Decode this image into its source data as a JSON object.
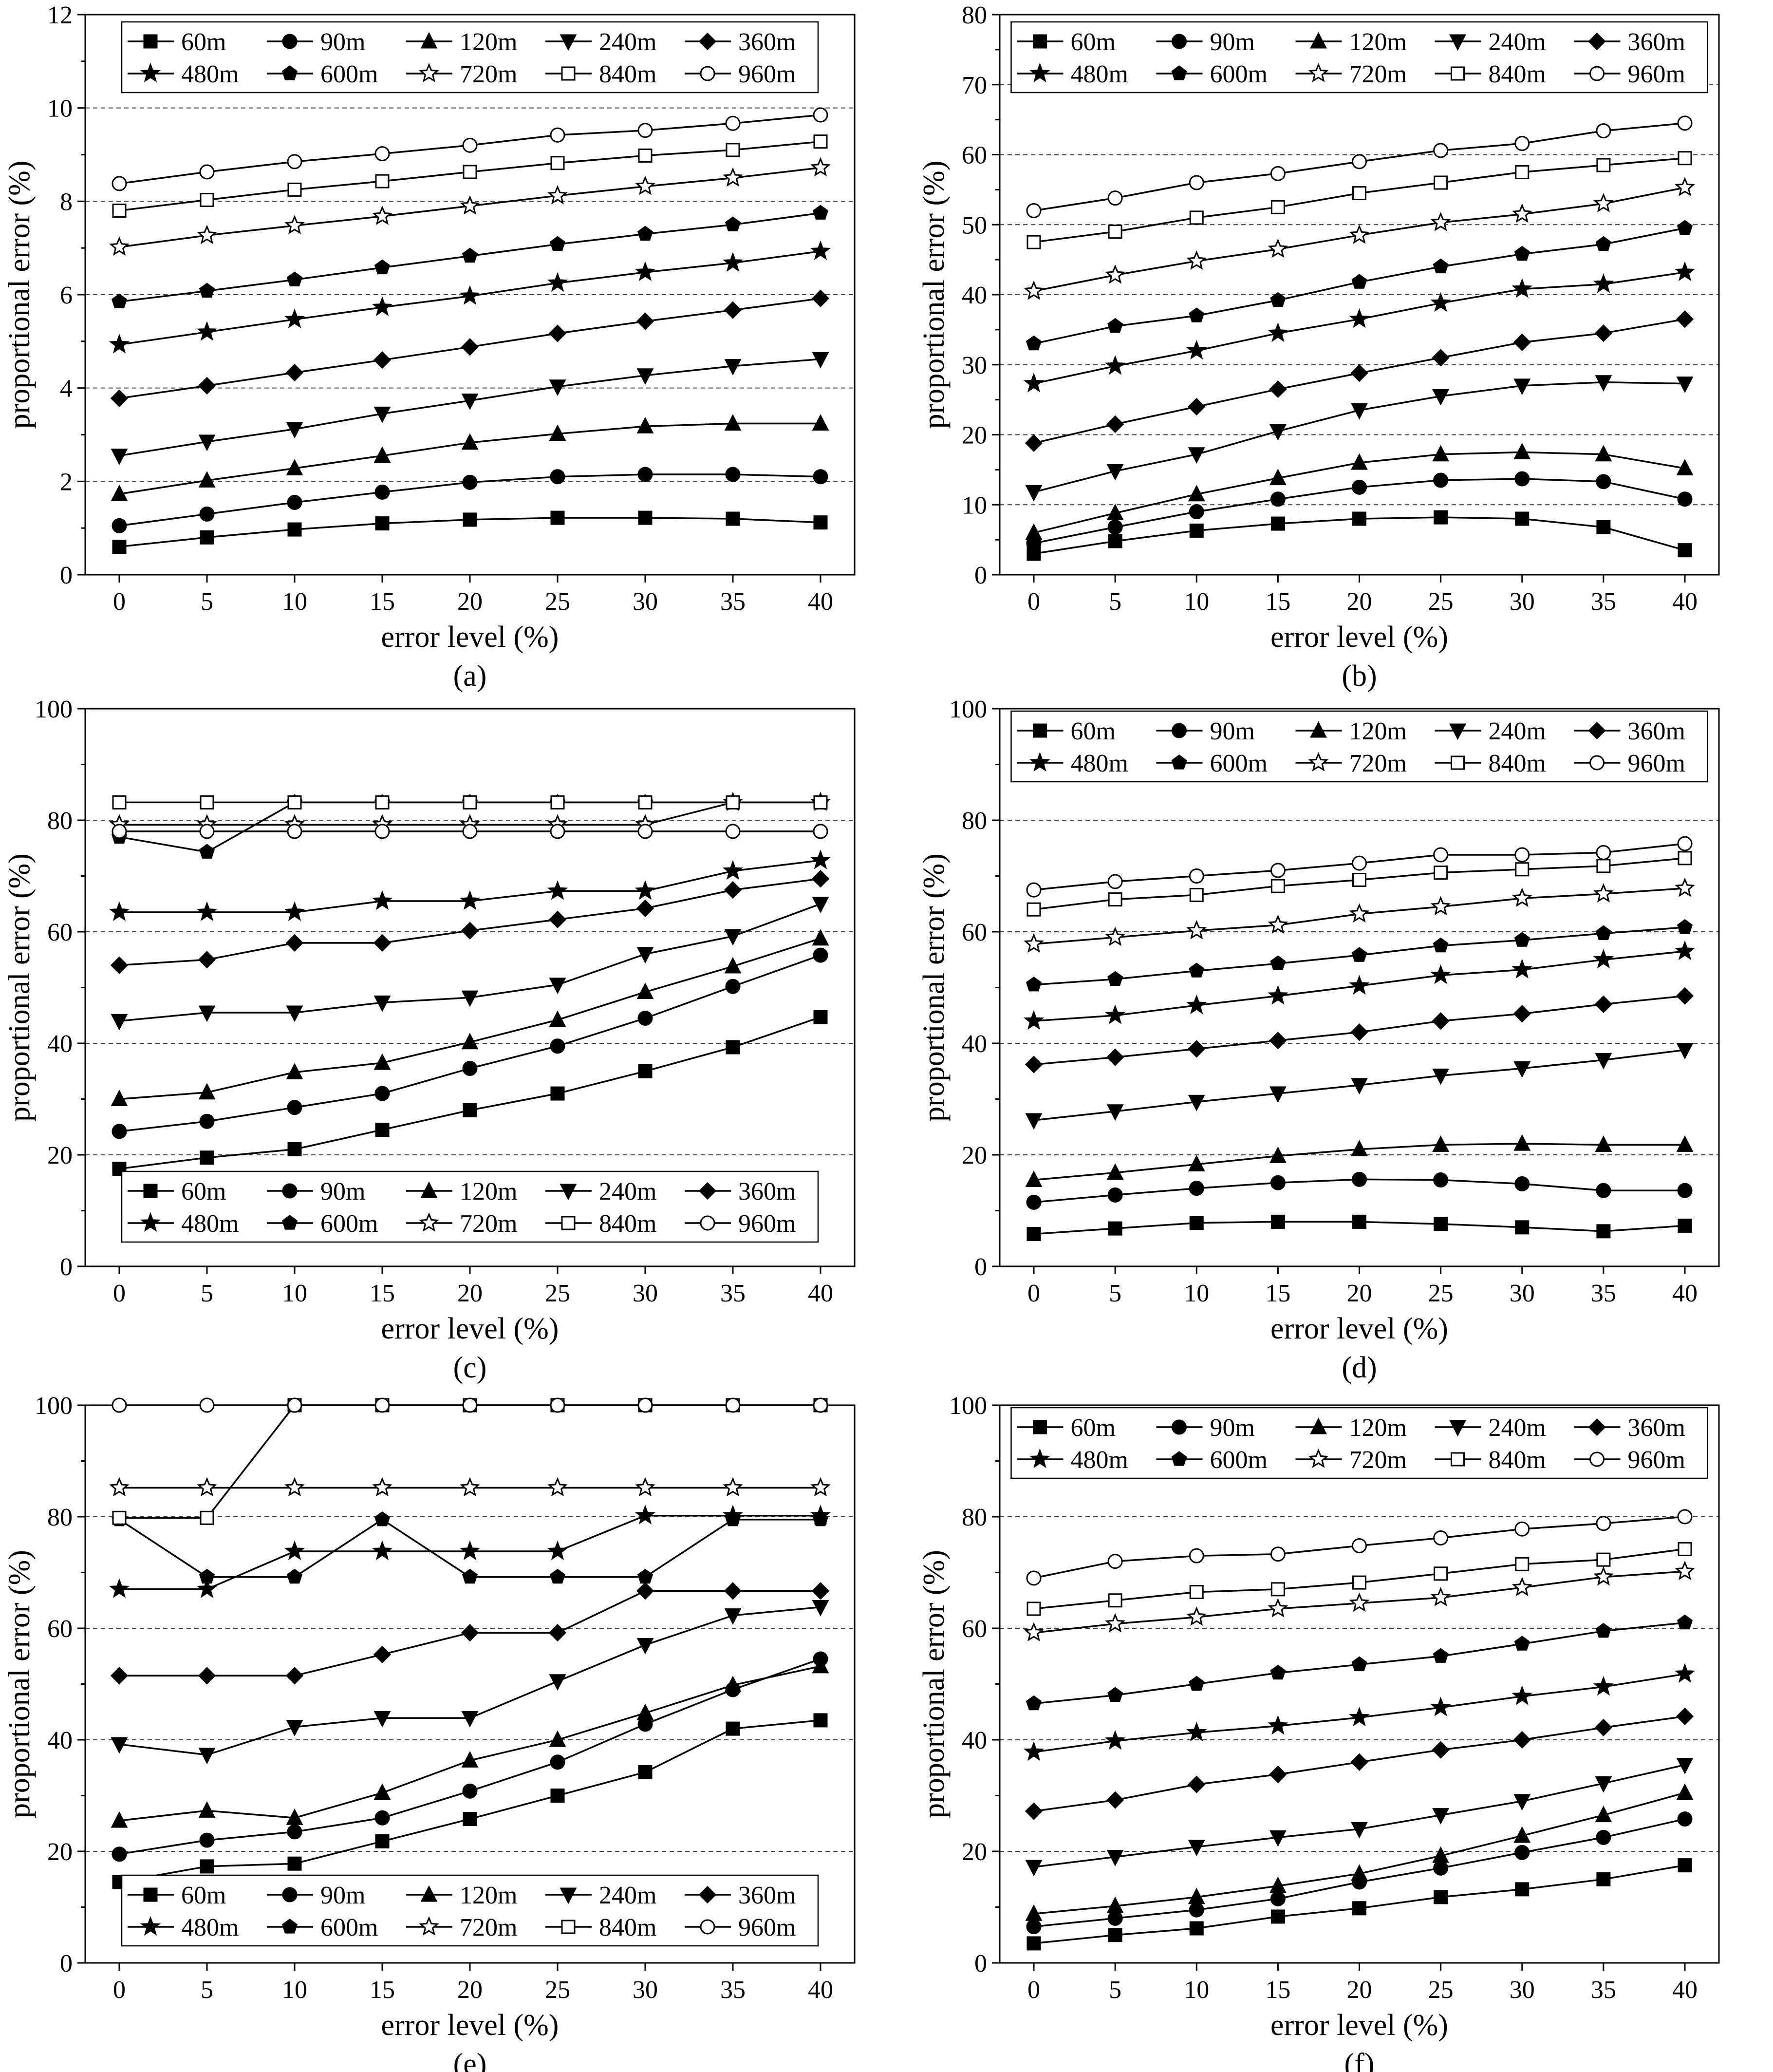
{
  "figure": {
    "series_names": [
      "60m",
      "90m",
      "120m",
      "240m",
      "360m",
      "480m",
      "600m",
      "720m",
      "840m",
      "960m"
    ],
    "series_markers": [
      "square-filled",
      "circle-filled",
      "triangle-up-filled",
      "triangle-down-filled",
      "diamond-filled",
      "star-filled",
      "pentagon-filled",
      "star-open",
      "square-open",
      "circle-open"
    ],
    "colors": {
      "line": "#000000",
      "grid": "#000000",
      "background": "#ffffff"
    }
  },
  "chart_data": [
    {
      "id": "a",
      "type": "line",
      "caption": "(a)",
      "xlabel": "error level (%)",
      "ylabel": "proportional error (%)",
      "x": [
        0,
        5,
        10,
        15,
        20,
        25,
        30,
        35,
        40
      ],
      "xticks": [
        0,
        5,
        10,
        15,
        20,
        25,
        30,
        35,
        40
      ],
      "ylim": [
        0,
        12
      ],
      "yticks": [
        0,
        2,
        4,
        6,
        8,
        10,
        12
      ],
      "grid_y": [
        2,
        4,
        6,
        8,
        10
      ],
      "legend": "top",
      "series": [
        {
          "name": "60m",
          "values": [
            0.6,
            0.8,
            0.97,
            1.1,
            1.18,
            1.22,
            1.22,
            1.2,
            1.12
          ]
        },
        {
          "name": "90m",
          "values": [
            1.05,
            1.3,
            1.55,
            1.77,
            1.98,
            2.1,
            2.15,
            2.15,
            2.1
          ]
        },
        {
          "name": "120m",
          "values": [
            1.73,
            2.02,
            2.28,
            2.55,
            2.83,
            3.02,
            3.18,
            3.24,
            3.24
          ]
        },
        {
          "name": "240m",
          "values": [
            2.55,
            2.85,
            3.12,
            3.45,
            3.73,
            4.03,
            4.27,
            4.47,
            4.62
          ]
        },
        {
          "name": "360m",
          "values": [
            3.78,
            4.05,
            4.33,
            4.6,
            4.88,
            5.17,
            5.43,
            5.67,
            5.92
          ]
        },
        {
          "name": "480m",
          "values": [
            4.93,
            5.2,
            5.47,
            5.73,
            5.97,
            6.25,
            6.48,
            6.68,
            6.93
          ]
        },
        {
          "name": "600m",
          "values": [
            5.85,
            6.08,
            6.32,
            6.58,
            6.83,
            7.08,
            7.3,
            7.5,
            7.75
          ]
        },
        {
          "name": "720m",
          "values": [
            7.02,
            7.27,
            7.48,
            7.68,
            7.9,
            8.12,
            8.32,
            8.5,
            8.72
          ]
        },
        {
          "name": "840m",
          "values": [
            7.8,
            8.03,
            8.25,
            8.43,
            8.63,
            8.82,
            8.98,
            9.1,
            9.28
          ]
        },
        {
          "name": "960m",
          "values": [
            8.38,
            8.63,
            8.85,
            9.02,
            9.2,
            9.42,
            9.52,
            9.67,
            9.85
          ]
        }
      ]
    },
    {
      "id": "b",
      "type": "line",
      "caption": "(b)",
      "xlabel": "error level (%)",
      "ylabel": "proportional error (%)",
      "x": [
        0,
        5,
        10,
        15,
        20,
        25,
        30,
        35,
        40
      ],
      "xticks": [
        0,
        5,
        10,
        15,
        20,
        25,
        30,
        35,
        40
      ],
      "ylim": [
        0,
        80
      ],
      "yticks": [
        0,
        10,
        20,
        30,
        40,
        50,
        60,
        70,
        80
      ],
      "grid_y": [
        10,
        20,
        30,
        40,
        50,
        60,
        70
      ],
      "legend": "top",
      "series": [
        {
          "name": "60m",
          "values": [
            3,
            4.8,
            6.3,
            7.3,
            8.0,
            8.2,
            8.0,
            6.8,
            3.5
          ]
        },
        {
          "name": "90m",
          "values": [
            4.5,
            6.8,
            9.0,
            10.8,
            12.5,
            13.5,
            13.7,
            13.3,
            10.8
          ]
        },
        {
          "name": "120m",
          "values": [
            6.0,
            8.8,
            11.5,
            13.8,
            16.0,
            17.2,
            17.5,
            17.2,
            15.2
          ]
        },
        {
          "name": "240m",
          "values": [
            11.8,
            14.8,
            17.2,
            20.5,
            23.5,
            25.5,
            27.0,
            27.5,
            27.3
          ]
        },
        {
          "name": "360m",
          "values": [
            18.8,
            21.5,
            24.0,
            26.5,
            28.8,
            31.0,
            33.2,
            34.5,
            36.5
          ]
        },
        {
          "name": "480m",
          "values": [
            27.3,
            29.8,
            32.0,
            34.5,
            36.5,
            38.8,
            40.8,
            41.5,
            43.2
          ]
        },
        {
          "name": "600m",
          "values": [
            33.0,
            35.5,
            37.0,
            39.2,
            41.8,
            44.0,
            45.8,
            47.2,
            49.5
          ]
        },
        {
          "name": "720m",
          "values": [
            40.5,
            42.8,
            44.8,
            46.5,
            48.5,
            50.3,
            51.5,
            53.0,
            55.3
          ]
        },
        {
          "name": "840m",
          "values": [
            47.5,
            49.0,
            51.0,
            52.5,
            54.5,
            56.0,
            57.5,
            58.5,
            59.5
          ]
        },
        {
          "name": "960m",
          "values": [
            52.0,
            53.8,
            56.0,
            57.3,
            59.0,
            60.6,
            61.6,
            63.4,
            64.5
          ]
        }
      ]
    },
    {
      "id": "c",
      "type": "line",
      "caption": "(c)",
      "xlabel": "error level (%)",
      "ylabel": "proportional error (%)",
      "x": [
        0,
        5,
        10,
        15,
        20,
        25,
        30,
        35,
        40
      ],
      "xticks": [
        0,
        5,
        10,
        15,
        20,
        25,
        30,
        35,
        40
      ],
      "ylim": [
        0,
        100
      ],
      "yticks": [
        0,
        20,
        40,
        60,
        80,
        100
      ],
      "grid_y": [
        20,
        40,
        60,
        80
      ],
      "legend": "bottom",
      "series": [
        {
          "name": "60m",
          "values": [
            17.5,
            19.5,
            21.0,
            24.5,
            28.0,
            31.0,
            35.0,
            39.3,
            44.7
          ]
        },
        {
          "name": "90m",
          "values": [
            24.2,
            26.0,
            28.5,
            31.0,
            35.5,
            39.5,
            44.5,
            50.2,
            55.8
          ]
        },
        {
          "name": "120m",
          "values": [
            30.0,
            31.2,
            34.8,
            36.5,
            40.2,
            44.2,
            49.2,
            53.8,
            58.8
          ]
        },
        {
          "name": "240m",
          "values": [
            44.0,
            45.5,
            45.5,
            47.3,
            48.2,
            50.5,
            56.0,
            59.2,
            65.0
          ]
        },
        {
          "name": "360m",
          "values": [
            54.0,
            55.0,
            58.0,
            58.0,
            60.2,
            62.2,
            64.2,
            67.5,
            69.5
          ]
        },
        {
          "name": "480m",
          "values": [
            63.5,
            63.5,
            63.5,
            65.5,
            65.5,
            67.3,
            67.3,
            70.9,
            72.8
          ]
        },
        {
          "name": "600m",
          "values": [
            77.0,
            74.3,
            83.2,
            83.2,
            83.2,
            83.2,
            83.2,
            83.2,
            83.2
          ]
        },
        {
          "name": "720m",
          "values": [
            79.2,
            79.2,
            79.2,
            79.2,
            79.2,
            79.2,
            79.2,
            83.2,
            83.2
          ]
        },
        {
          "name": "840m",
          "values": [
            83.2,
            83.2,
            83.2,
            83.2,
            83.2,
            83.2,
            83.2,
            83.2,
            83.2
          ]
        },
        {
          "name": "960m",
          "values": [
            78.0,
            78.0,
            78.0,
            78.0,
            78.0,
            78.0,
            78.0,
            78.0,
            78.0
          ]
        }
      ]
    },
    {
      "id": "d",
      "type": "line",
      "caption": "(d)",
      "xlabel": "error level (%)",
      "ylabel": "proportional error (%)",
      "x": [
        0,
        5,
        10,
        15,
        20,
        25,
        30,
        35,
        40
      ],
      "xticks": [
        0,
        5,
        10,
        15,
        20,
        25,
        30,
        35,
        40
      ],
      "ylim": [
        0,
        100
      ],
      "yticks": [
        0,
        20,
        40,
        60,
        80,
        100
      ],
      "grid_y": [
        20,
        40,
        60,
        80
      ],
      "legend": "top",
      "series": [
        {
          "name": "60m",
          "values": [
            5.8,
            6.8,
            7.8,
            8.0,
            8.0,
            7.6,
            7.0,
            6.3,
            7.3
          ]
        },
        {
          "name": "90m",
          "values": [
            11.5,
            12.8,
            14.0,
            15.0,
            15.6,
            15.5,
            14.8,
            13.6,
            13.6
          ]
        },
        {
          "name": "120m",
          "values": [
            15.5,
            16.8,
            18.3,
            19.8,
            21.0,
            21.8,
            22.0,
            21.8,
            21.8
          ]
        },
        {
          "name": "240m",
          "values": [
            26.2,
            27.8,
            29.5,
            31.0,
            32.5,
            34.2,
            35.5,
            37.0,
            38.8
          ]
        },
        {
          "name": "360m",
          "values": [
            36.2,
            37.5,
            39.0,
            40.5,
            42.0,
            44.0,
            45.3,
            47.0,
            48.5
          ]
        },
        {
          "name": "480m",
          "values": [
            44.0,
            45.0,
            46.8,
            48.5,
            50.3,
            52.2,
            53.2,
            55.0,
            56.5
          ]
        },
        {
          "name": "600m",
          "values": [
            50.5,
            51.5,
            53.0,
            54.3,
            55.8,
            57.5,
            58.5,
            59.7,
            60.8
          ]
        },
        {
          "name": "720m",
          "values": [
            57.8,
            59.0,
            60.2,
            61.2,
            63.2,
            64.5,
            66.0,
            66.8,
            67.8
          ]
        },
        {
          "name": "840m",
          "values": [
            64.0,
            65.8,
            66.6,
            68.2,
            69.3,
            70.6,
            71.2,
            71.8,
            73.2
          ]
        },
        {
          "name": "960m",
          "values": [
            67.5,
            69.0,
            70.0,
            71.0,
            72.3,
            73.8,
            73.8,
            74.2,
            75.8
          ]
        }
      ]
    },
    {
      "id": "e",
      "type": "line",
      "caption": "(e)",
      "xlabel": "error level (%)",
      "ylabel": "proportional error (%)",
      "x": [
        0,
        5,
        10,
        15,
        20,
        25,
        30,
        35,
        40
      ],
      "xticks": [
        0,
        5,
        10,
        15,
        20,
        25,
        30,
        35,
        40
      ],
      "ylim": [
        0,
        100
      ],
      "yticks": [
        0,
        20,
        40,
        60,
        80,
        100
      ],
      "grid_y": [
        20,
        40,
        60,
        80,
        100
      ],
      "legend": "bottom",
      "series": [
        {
          "name": "60m",
          "values": [
            14.5,
            17.3,
            17.8,
            21.8,
            25.8,
            30.0,
            34.2,
            42.0,
            43.5
          ]
        },
        {
          "name": "90m",
          "values": [
            19.5,
            22.0,
            23.5,
            26.0,
            30.8,
            36.0,
            42.8,
            49.0,
            54.5
          ]
        },
        {
          "name": "120m",
          "values": [
            25.5,
            27.3,
            26.0,
            30.5,
            36.3,
            40.0,
            44.8,
            49.8,
            53.2
          ]
        },
        {
          "name": "240m",
          "values": [
            39.2,
            37.3,
            42.3,
            43.9,
            43.9,
            50.5,
            57.0,
            62.3,
            63.8
          ]
        },
        {
          "name": "360m",
          "values": [
            51.5,
            51.5,
            51.5,
            55.3,
            59.2,
            59.2,
            66.7,
            66.7,
            66.7
          ]
        },
        {
          "name": "480m",
          "values": [
            67.0,
            67.0,
            73.8,
            73.8,
            73.8,
            73.8,
            80.2,
            80.2,
            80.2
          ]
        },
        {
          "name": "600m",
          "values": [
            79.5,
            69.2,
            69.2,
            79.5,
            69.2,
            69.2,
            69.2,
            79.5,
            79.5
          ]
        },
        {
          "name": "720m",
          "values": [
            85.2,
            85.2,
            85.2,
            85.2,
            85.2,
            85.2,
            85.2,
            85.2,
            85.2
          ]
        },
        {
          "name": "840m",
          "values": [
            79.8,
            79.8,
            100,
            100,
            100,
            100,
            100,
            100,
            100
          ]
        },
        {
          "name": "960m",
          "values": [
            100,
            100,
            100,
            100,
            100,
            100,
            100,
            100,
            100
          ]
        }
      ]
    },
    {
      "id": "f",
      "type": "line",
      "caption": "(f)",
      "xlabel": "error level (%)",
      "ylabel": "proportional error (%)",
      "x": [
        0,
        5,
        10,
        15,
        20,
        25,
        30,
        35,
        40
      ],
      "xticks": [
        0,
        5,
        10,
        15,
        20,
        25,
        30,
        35,
        40
      ],
      "ylim": [
        0,
        100
      ],
      "yticks": [
        0,
        20,
        40,
        60,
        80,
        100
      ],
      "grid_y": [
        20,
        40,
        60,
        80
      ],
      "legend": "top",
      "series": [
        {
          "name": "60m",
          "values": [
            3.5,
            5.0,
            6.2,
            8.3,
            9.8,
            11.8,
            13.2,
            15.0,
            17.5
          ]
        },
        {
          "name": "90m",
          "values": [
            6.5,
            8.0,
            9.5,
            11.5,
            14.5,
            17.0,
            19.8,
            22.5,
            25.8
          ]
        },
        {
          "name": "120m",
          "values": [
            8.8,
            10.2,
            11.8,
            13.8,
            16.0,
            19.2,
            22.8,
            26.5,
            30.5
          ]
        },
        {
          "name": "240m",
          "values": [
            17.2,
            19.0,
            20.8,
            22.5,
            24.0,
            26.5,
            29.0,
            32.2,
            35.5
          ]
        },
        {
          "name": "360m",
          "values": [
            27.2,
            29.2,
            32.0,
            33.8,
            36.0,
            38.2,
            40.0,
            42.2,
            44.2
          ]
        },
        {
          "name": "480m",
          "values": [
            37.8,
            39.8,
            41.3,
            42.5,
            44.0,
            45.8,
            47.8,
            49.5,
            51.8
          ]
        },
        {
          "name": "600m",
          "values": [
            46.5,
            48.0,
            50.0,
            52.0,
            53.5,
            55.0,
            57.2,
            59.5,
            61.0
          ]
        },
        {
          "name": "720m",
          "values": [
            59.2,
            60.8,
            62.0,
            63.5,
            64.5,
            65.5,
            67.3,
            69.2,
            70.2
          ]
        },
        {
          "name": "840m",
          "values": [
            63.5,
            65.0,
            66.5,
            67.0,
            68.2,
            69.8,
            71.5,
            72.3,
            74.2
          ]
        },
        {
          "name": "960m",
          "values": [
            69.0,
            72.0,
            73.0,
            73.3,
            74.8,
            76.2,
            77.8,
            78.8,
            80.0
          ]
        }
      ]
    }
  ]
}
